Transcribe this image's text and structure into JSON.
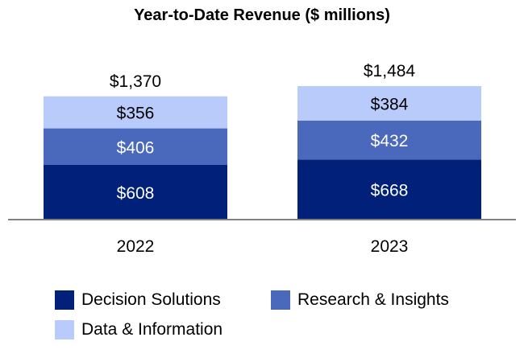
{
  "chart_data": {
    "type": "bar",
    "stacked": true,
    "title": "Year-to-Date Revenue ($ millions)",
    "xlabel": "",
    "ylabel": "",
    "categories": [
      "2022",
      "2023"
    ],
    "series": [
      {
        "name": "Decision Solutions",
        "values": [
          608,
          668
        ],
        "labels": [
          "$608",
          "$668"
        ],
        "color": "#00207A"
      },
      {
        "name": "Research & Insights",
        "values": [
          406,
          432
        ],
        "labels": [
          "$406",
          "$432"
        ],
        "color": "#4A69BD"
      },
      {
        "name": "Data & Information",
        "values": [
          356,
          384
        ],
        "labels": [
          "$356",
          "$384"
        ],
        "color": "#B9CBFB"
      }
    ],
    "totals": [
      1370,
      1484
    ],
    "total_labels": [
      "$1,370",
      "$1,484"
    ],
    "ylim": [
      0,
      1484
    ],
    "grid": false,
    "legend_position": "bottom"
  }
}
